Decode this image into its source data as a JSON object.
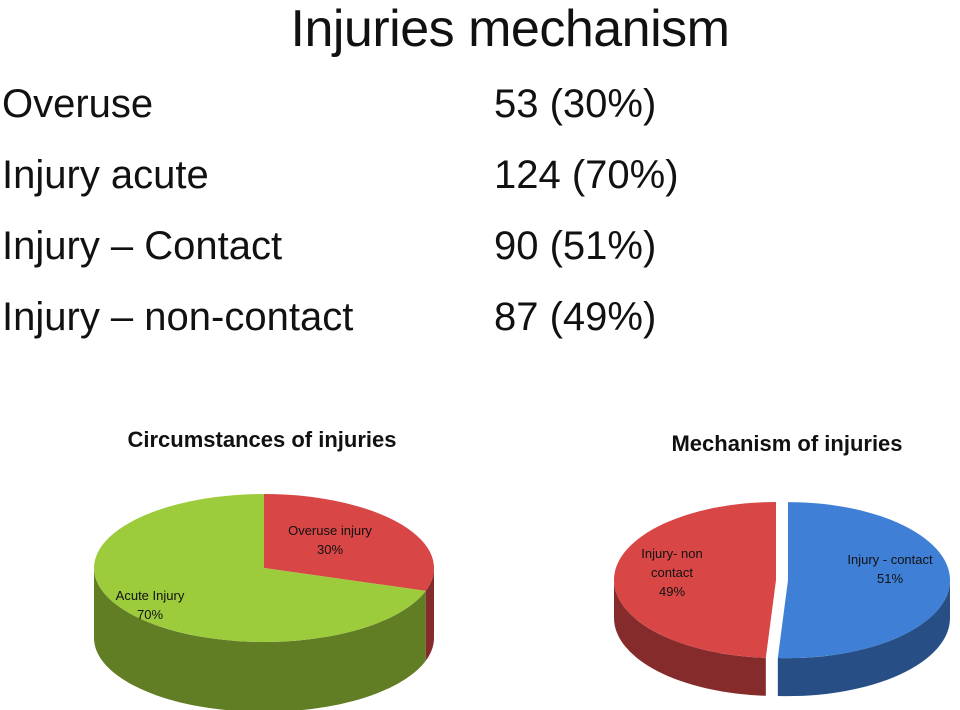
{
  "slide": {
    "title": "Injuries mechanism",
    "stats": [
      {
        "label": "Overuse",
        "value": "53 (30%)"
      },
      {
        "label": "Injury acute",
        "value": "124 (70%)"
      },
      {
        "label": "Injury – Contact",
        "value": "90  (51%)"
      },
      {
        "label": "Injury – non-contact",
        "value": "87 (49%)"
      }
    ]
  },
  "colors": {
    "green": "#9ccc3c",
    "red": "#d84646",
    "blue": "#3f7fd6"
  },
  "chart_data": [
    {
      "type": "pie",
      "title": "Circumstances of injuries",
      "slices": [
        {
          "label": [
            "Overuse injury",
            "30%"
          ],
          "value": 30,
          "color": "#d84646"
        },
        {
          "label": [
            "Acute Injury",
            "70%"
          ],
          "value": 70,
          "color": "#9ccc3c"
        }
      ],
      "style": "3d"
    },
    {
      "type": "pie",
      "title": "Mechanism of injuries",
      "slices": [
        {
          "label": [
            "Injury - contact",
            "51%"
          ],
          "value": 51,
          "color": "#3f7fd6"
        },
        {
          "label": [
            "Injury- non",
            "contact",
            "49%"
          ],
          "value": 49,
          "color": "#d84646"
        }
      ],
      "style": "3d"
    }
  ]
}
